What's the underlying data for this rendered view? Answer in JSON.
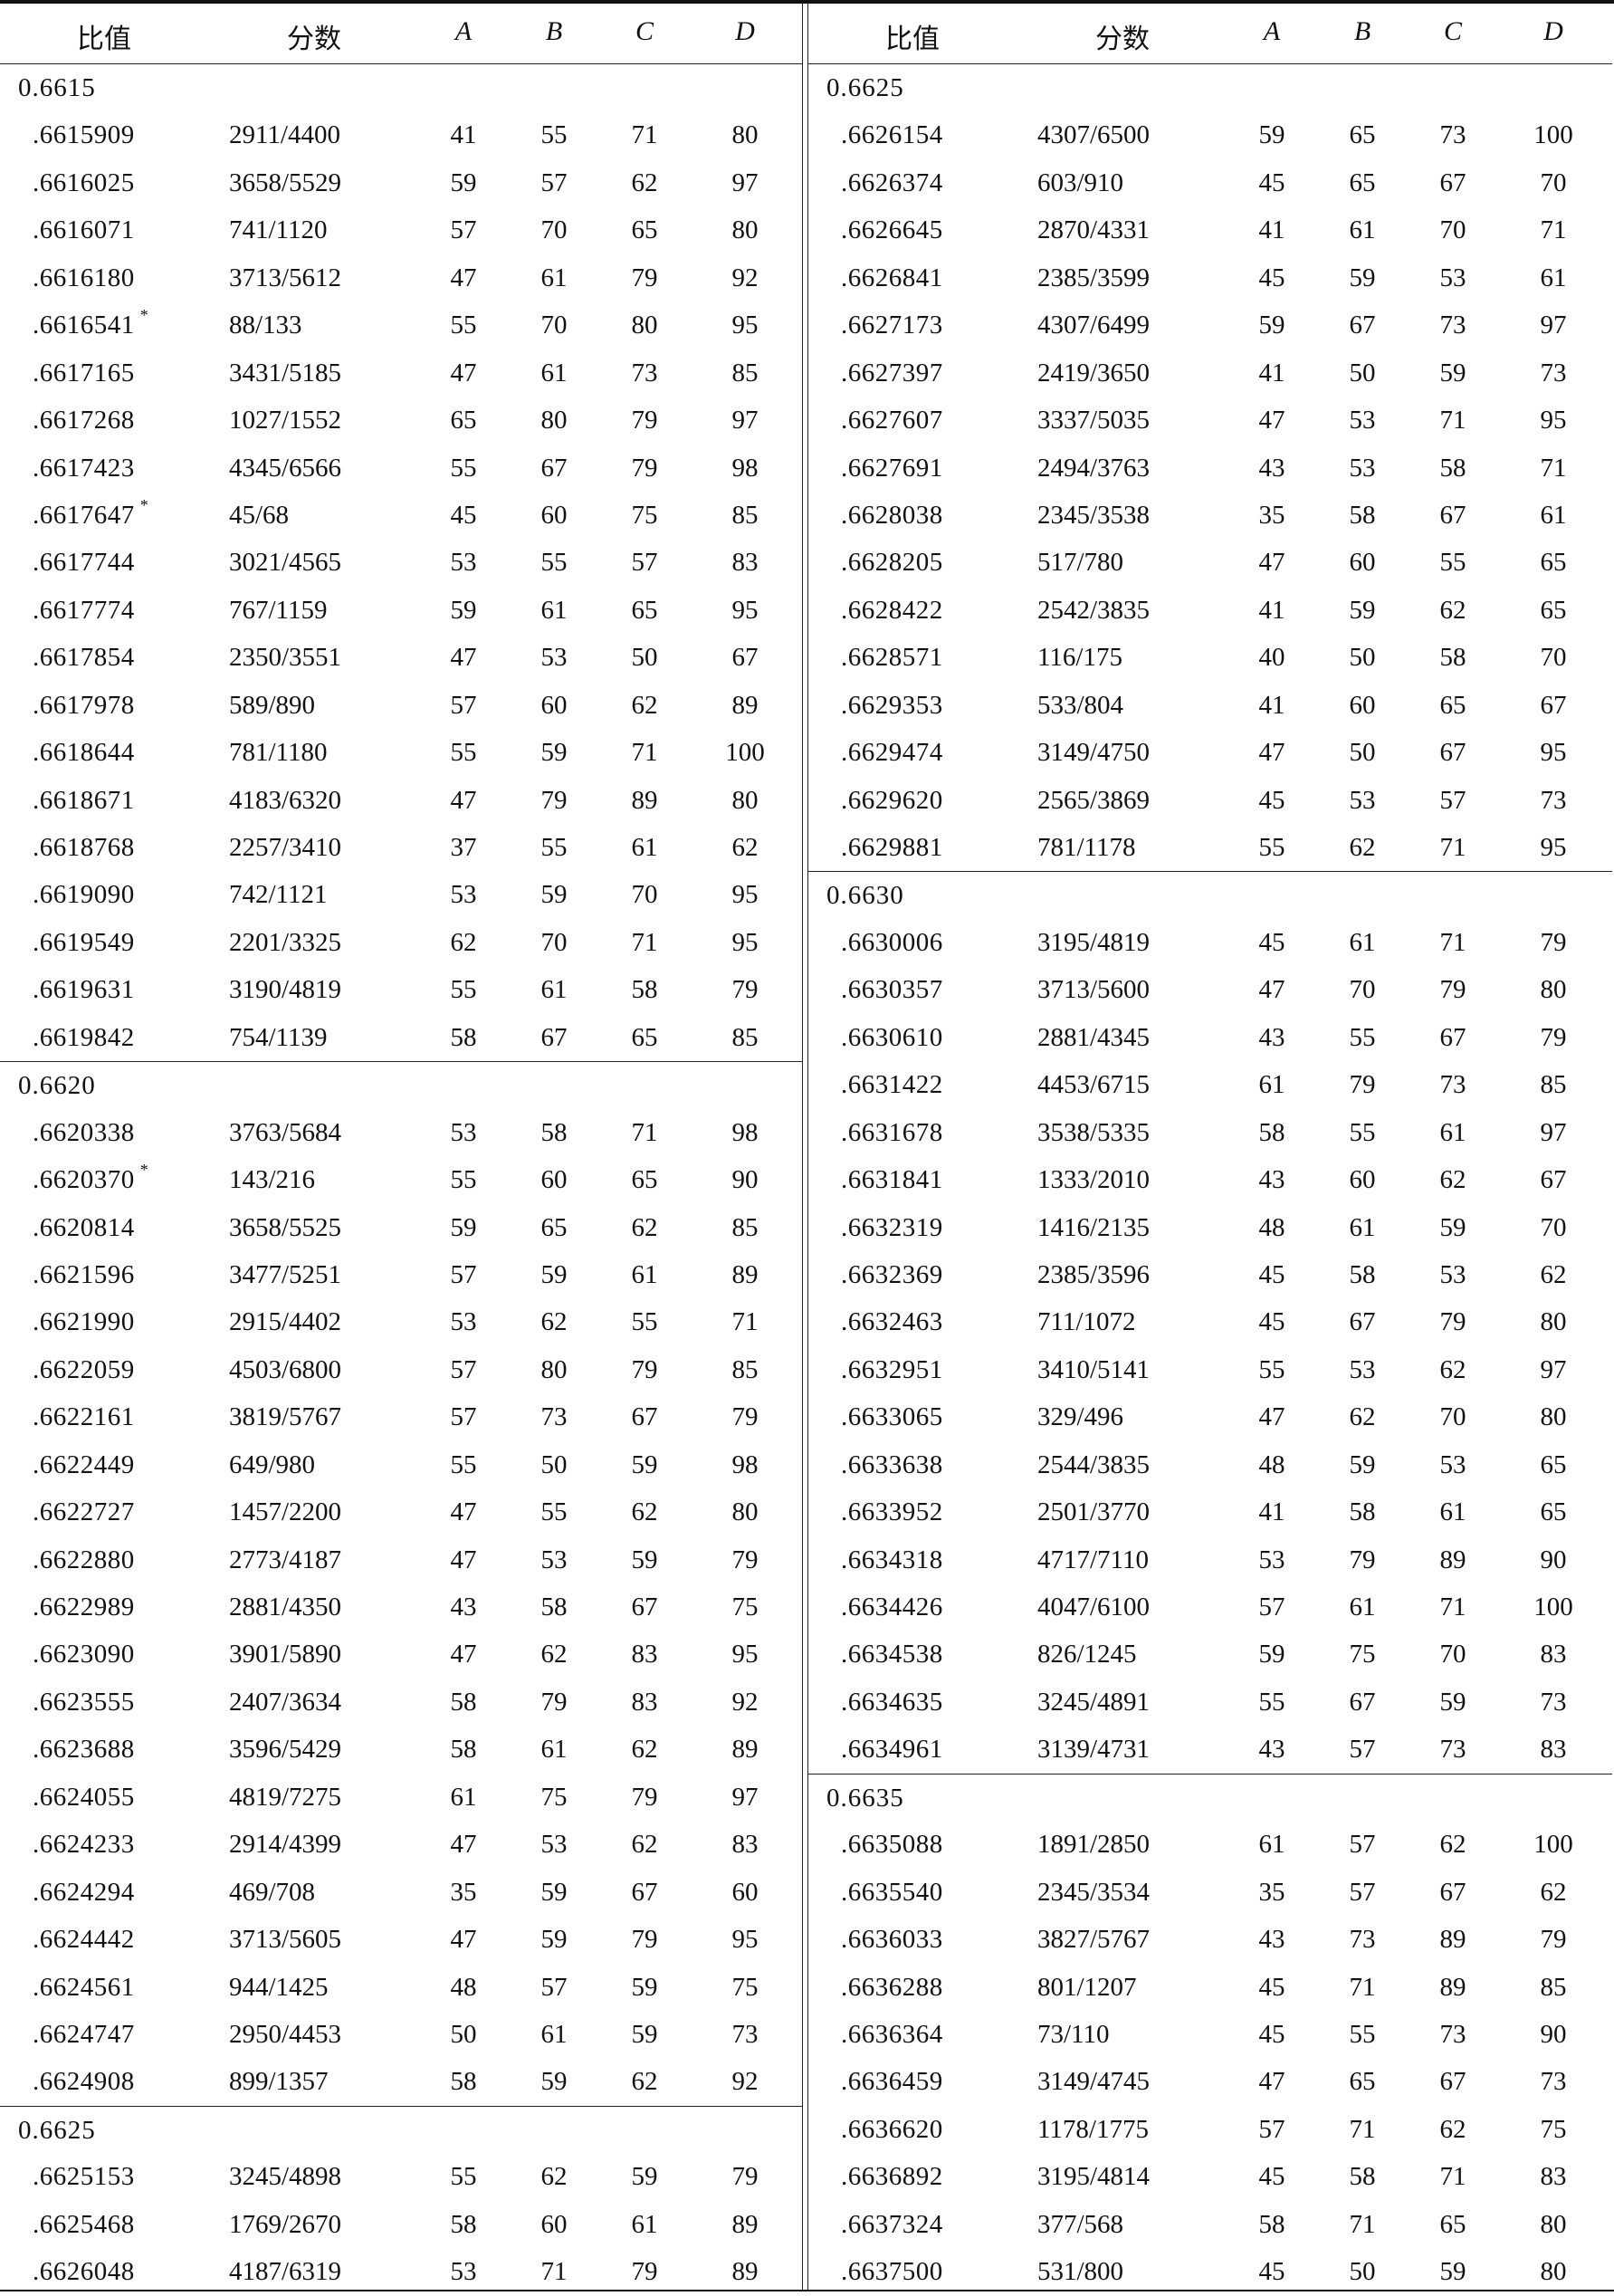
{
  "headers": {
    "ratio": "比值",
    "fraction": "分数",
    "a": "A",
    "b": "B",
    "c": "C",
    "d": "D"
  },
  "left": {
    "groups": [
      {
        "label": "0.6615",
        "rows": [
          {
            "value": ".6615909",
            "fraction": "2911/4400",
            "a": "41",
            "b": "55",
            "c": "71",
            "d": "80"
          },
          {
            "value": ".6616025",
            "fraction": "3658/5529",
            "a": "59",
            "b": "57",
            "c": "62",
            "d": "97"
          },
          {
            "value": ".6616071",
            "fraction": "741/1120",
            "a": "57",
            "b": "70",
            "c": "65",
            "d": "80"
          },
          {
            "value": ".6616180",
            "fraction": "3713/5612",
            "a": "47",
            "b": "61",
            "c": "79",
            "d": "92"
          },
          {
            "value": ".6616541",
            "star": "*",
            "fraction": "88/133",
            "a": "55",
            "b": "70",
            "c": "80",
            "d": "95"
          },
          {
            "value": ".6617165",
            "fraction": "3431/5185",
            "a": "47",
            "b": "61",
            "c": "73",
            "d": "85"
          },
          {
            "value": ".6617268",
            "fraction": "1027/1552",
            "a": "65",
            "b": "80",
            "c": "79",
            "d": "97"
          },
          {
            "value": ".6617423",
            "fraction": "4345/6566",
            "a": "55",
            "b": "67",
            "c": "79",
            "d": "98"
          },
          {
            "value": ".6617647",
            "star": "*",
            "fraction": "45/68",
            "a": "45",
            "b": "60",
            "c": "75",
            "d": "85"
          },
          {
            "value": ".6617744",
            "fraction": "3021/4565",
            "a": "53",
            "b": "55",
            "c": "57",
            "d": "83"
          },
          {
            "value": ".6617774",
            "fraction": "767/1159",
            "a": "59",
            "b": "61",
            "c": "65",
            "d": "95"
          },
          {
            "value": ".6617854",
            "fraction": "2350/3551",
            "a": "47",
            "b": "53",
            "c": "50",
            "d": "67"
          },
          {
            "value": ".6617978",
            "fraction": "589/890",
            "a": "57",
            "b": "60",
            "c": "62",
            "d": "89"
          },
          {
            "value": ".6618644",
            "fraction": "781/1180",
            "a": "55",
            "b": "59",
            "c": "71",
            "d": "100"
          },
          {
            "value": ".6618671",
            "fraction": "4183/6320",
            "a": "47",
            "b": "79",
            "c": "89",
            "d": "80"
          },
          {
            "value": ".6618768",
            "fraction": "2257/3410",
            "a": "37",
            "b": "55",
            "c": "61",
            "d": "62"
          },
          {
            "value": ".6619090",
            "fraction": "742/1121",
            "a": "53",
            "b": "59",
            "c": "70",
            "d": "95"
          },
          {
            "value": ".6619549",
            "fraction": "2201/3325",
            "a": "62",
            "b": "70",
            "c": "71",
            "d": "95"
          },
          {
            "value": ".6619631",
            "fraction": "3190/4819",
            "a": "55",
            "b": "61",
            "c": "58",
            "d": "79"
          },
          {
            "value": ".6619842",
            "fraction": "754/1139",
            "a": "58",
            "b": "67",
            "c": "65",
            "d": "85"
          }
        ]
      },
      {
        "label": "0.6620",
        "rows": [
          {
            "value": ".6620338",
            "fraction": "3763/5684",
            "a": "53",
            "b": "58",
            "c": "71",
            "d": "98"
          },
          {
            "value": ".6620370",
            "star": "*",
            "fraction": "143/216",
            "a": "55",
            "b": "60",
            "c": "65",
            "d": "90"
          },
          {
            "value": ".6620814",
            "fraction": "3658/5525",
            "a": "59",
            "b": "65",
            "c": "62",
            "d": "85"
          },
          {
            "value": ".6621596",
            "fraction": "3477/5251",
            "a": "57",
            "b": "59",
            "c": "61",
            "d": "89"
          },
          {
            "value": ".6621990",
            "fraction": "2915/4402",
            "a": "53",
            "b": "62",
            "c": "55",
            "d": "71"
          },
          {
            "value": ".6622059",
            "fraction": "4503/6800",
            "a": "57",
            "b": "80",
            "c": "79",
            "d": "85"
          },
          {
            "value": ".6622161",
            "fraction": "3819/5767",
            "a": "57",
            "b": "73",
            "c": "67",
            "d": "79"
          },
          {
            "value": ".6622449",
            "fraction": "649/980",
            "a": "55",
            "b": "50",
            "c": "59",
            "d": "98"
          },
          {
            "value": ".6622727",
            "fraction": "1457/2200",
            "a": "47",
            "b": "55",
            "c": "62",
            "d": "80"
          },
          {
            "value": ".6622880",
            "fraction": "2773/4187",
            "a": "47",
            "b": "53",
            "c": "59",
            "d": "79"
          },
          {
            "value": ".6622989",
            "fraction": "2881/4350",
            "a": "43",
            "b": "58",
            "c": "67",
            "d": "75"
          },
          {
            "value": ".6623090",
            "fraction": "3901/5890",
            "a": "47",
            "b": "62",
            "c": "83",
            "d": "95"
          },
          {
            "value": ".6623555",
            "fraction": "2407/3634",
            "a": "58",
            "b": "79",
            "c": "83",
            "d": "92"
          },
          {
            "value": ".6623688",
            "fraction": "3596/5429",
            "a": "58",
            "b": "61",
            "c": "62",
            "d": "89"
          },
          {
            "value": ".6624055",
            "fraction": "4819/7275",
            "a": "61",
            "b": "75",
            "c": "79",
            "d": "97"
          },
          {
            "value": ".6624233",
            "fraction": "2914/4399",
            "a": "47",
            "b": "53",
            "c": "62",
            "d": "83"
          },
          {
            "value": ".6624294",
            "fraction": "469/708",
            "a": "35",
            "b": "59",
            "c": "67",
            "d": "60"
          },
          {
            "value": ".6624442",
            "fraction": "3713/5605",
            "a": "47",
            "b": "59",
            "c": "79",
            "d": "95"
          },
          {
            "value": ".6624561",
            "fraction": "944/1425",
            "a": "48",
            "b": "57",
            "c": "59",
            "d": "75"
          },
          {
            "value": ".6624747",
            "fraction": "2950/4453",
            "a": "50",
            "b": "61",
            "c": "59",
            "d": "73"
          },
          {
            "value": ".6624908",
            "fraction": "899/1357",
            "a": "58",
            "b": "59",
            "c": "62",
            "d": "92"
          }
        ]
      },
      {
        "label": "0.6625",
        "rows": [
          {
            "value": ".6625153",
            "fraction": "3245/4898",
            "a": "55",
            "b": "62",
            "c": "59",
            "d": "79"
          },
          {
            "value": ".6625468",
            "fraction": "1769/2670",
            "a": "58",
            "b": "60",
            "c": "61",
            "d": "89"
          },
          {
            "value": ".6626048",
            "fraction": "4187/6319",
            "a": "53",
            "b": "71",
            "c": "79",
            "d": "89"
          }
        ]
      }
    ]
  },
  "right": {
    "groups": [
      {
        "label": "0.6625",
        "rows": [
          {
            "value": ".6626154",
            "fraction": "4307/6500",
            "a": "59",
            "b": "65",
            "c": "73",
            "d": "100"
          },
          {
            "value": ".6626374",
            "fraction": "603/910",
            "a": "45",
            "b": "65",
            "c": "67",
            "d": "70"
          },
          {
            "value": ".6626645",
            "fraction": "2870/4331",
            "a": "41",
            "b": "61",
            "c": "70",
            "d": "71"
          },
          {
            "value": ".6626841",
            "fraction": "2385/3599",
            "a": "45",
            "b": "59",
            "c": "53",
            "d": "61"
          },
          {
            "value": ".6627173",
            "fraction": "4307/6499",
            "a": "59",
            "b": "67",
            "c": "73",
            "d": "97"
          },
          {
            "value": ".6627397",
            "fraction": "2419/3650",
            "a": "41",
            "b": "50",
            "c": "59",
            "d": "73"
          },
          {
            "value": ".6627607",
            "fraction": "3337/5035",
            "a": "47",
            "b": "53",
            "c": "71",
            "d": "95"
          },
          {
            "value": ".6627691",
            "fraction": "2494/3763",
            "a": "43",
            "b": "53",
            "c": "58",
            "d": "71"
          },
          {
            "value": ".6628038",
            "fraction": "2345/3538",
            "a": "35",
            "b": "58",
            "c": "67",
            "d": "61"
          },
          {
            "value": ".6628205",
            "fraction": "517/780",
            "a": "47",
            "b": "60",
            "c": "55",
            "d": "65"
          },
          {
            "value": ".6628422",
            "fraction": "2542/3835",
            "a": "41",
            "b": "59",
            "c": "62",
            "d": "65"
          },
          {
            "value": ".6628571",
            "fraction": "116/175",
            "a": "40",
            "b": "50",
            "c": "58",
            "d": "70"
          },
          {
            "value": ".6629353",
            "fraction": "533/804",
            "a": "41",
            "b": "60",
            "c": "65",
            "d": "67"
          },
          {
            "value": ".6629474",
            "fraction": "3149/4750",
            "a": "47",
            "b": "50",
            "c": "67",
            "d": "95"
          },
          {
            "value": ".6629620",
            "fraction": "2565/3869",
            "a": "45",
            "b": "53",
            "c": "57",
            "d": "73"
          },
          {
            "value": ".6629881",
            "fraction": "781/1178",
            "a": "55",
            "b": "62",
            "c": "71",
            "d": "95"
          }
        ]
      },
      {
        "label": "0.6630",
        "rows": [
          {
            "value": ".6630006",
            "fraction": "3195/4819",
            "a": "45",
            "b": "61",
            "c": "71",
            "d": "79"
          },
          {
            "value": ".6630357",
            "fraction": "3713/5600",
            "a": "47",
            "b": "70",
            "c": "79",
            "d": "80"
          },
          {
            "value": ".6630610",
            "fraction": "2881/4345",
            "a": "43",
            "b": "55",
            "c": "67",
            "d": "79"
          },
          {
            "value": ".6631422",
            "fraction": "4453/6715",
            "a": "61",
            "b": "79",
            "c": "73",
            "d": "85"
          },
          {
            "value": ".6631678",
            "fraction": "3538/5335",
            "a": "58",
            "b": "55",
            "c": "61",
            "d": "97"
          },
          {
            "value": ".6631841",
            "fraction": "1333/2010",
            "a": "43",
            "b": "60",
            "c": "62",
            "d": "67"
          },
          {
            "value": ".6632319",
            "fraction": "1416/2135",
            "a": "48",
            "b": "61",
            "c": "59",
            "d": "70"
          },
          {
            "value": ".6632369",
            "fraction": "2385/3596",
            "a": "45",
            "b": "58",
            "c": "53",
            "d": "62"
          },
          {
            "value": ".6632463",
            "fraction": "711/1072",
            "a": "45",
            "b": "67",
            "c": "79",
            "d": "80"
          },
          {
            "value": ".6632951",
            "fraction": "3410/5141",
            "a": "55",
            "b": "53",
            "c": "62",
            "d": "97"
          },
          {
            "value": ".6633065",
            "fraction": "329/496",
            "a": "47",
            "b": "62",
            "c": "70",
            "d": "80"
          },
          {
            "value": ".6633638",
            "fraction": "2544/3835",
            "a": "48",
            "b": "59",
            "c": "53",
            "d": "65"
          },
          {
            "value": ".6633952",
            "fraction": "2501/3770",
            "a": "41",
            "b": "58",
            "c": "61",
            "d": "65"
          },
          {
            "value": ".6634318",
            "fraction": "4717/7110",
            "a": "53",
            "b": "79",
            "c": "89",
            "d": "90"
          },
          {
            "value": ".6634426",
            "fraction": "4047/6100",
            "a": "57",
            "b": "61",
            "c": "71",
            "d": "100"
          },
          {
            "value": ".6634538",
            "fraction": "826/1245",
            "a": "59",
            "b": "75",
            "c": "70",
            "d": "83"
          },
          {
            "value": ".6634635",
            "fraction": "3245/4891",
            "a": "55",
            "b": "67",
            "c": "59",
            "d": "73"
          },
          {
            "value": ".6634961",
            "fraction": "3139/4731",
            "a": "43",
            "b": "57",
            "c": "73",
            "d": "83"
          }
        ]
      },
      {
        "label": "0.6635",
        "rows": [
          {
            "value": ".6635088",
            "fraction": "1891/2850",
            "a": "61",
            "b": "57",
            "c": "62",
            "d": "100"
          },
          {
            "value": ".6635540",
            "fraction": "2345/3534",
            "a": "35",
            "b": "57",
            "c": "67",
            "d": "62"
          },
          {
            "value": ".6636033",
            "fraction": "3827/5767",
            "a": "43",
            "b": "73",
            "c": "89",
            "d": "79"
          },
          {
            "value": ".6636288",
            "fraction": "801/1207",
            "a": "45",
            "b": "71",
            "c": "89",
            "d": "85"
          },
          {
            "value": ".6636364",
            "fraction": "73/110",
            "a": "45",
            "b": "55",
            "c": "73",
            "d": "90"
          },
          {
            "value": ".6636459",
            "fraction": "3149/4745",
            "a": "47",
            "b": "65",
            "c": "67",
            "d": "73"
          },
          {
            "value": ".6636620",
            "fraction": "1178/1775",
            "a": "57",
            "b": "71",
            "c": "62",
            "d": "75"
          },
          {
            "value": ".6636892",
            "fraction": "3195/4814",
            "a": "45",
            "b": "58",
            "c": "71",
            "d": "83"
          },
          {
            "value": ".6637324",
            "fraction": "377/568",
            "a": "58",
            "b": "71",
            "c": "65",
            "d": "80"
          },
          {
            "value": ".6637500",
            "fraction": "531/800",
            "a": "45",
            "b": "50",
            "c": "59",
            "d": "80"
          }
        ]
      }
    ]
  }
}
